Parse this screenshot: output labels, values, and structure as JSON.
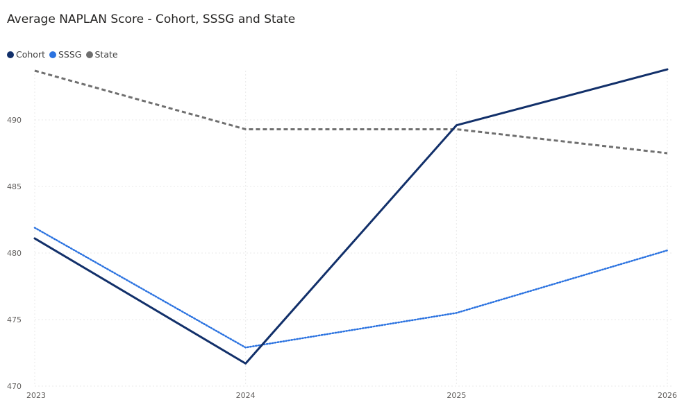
{
  "chart_data": {
    "type": "line",
    "title": "Average NAPLAN Score - Cohort, SSSG and State",
    "x": [
      "2023",
      "2024",
      "2025",
      "2026"
    ],
    "ylim": [
      470,
      493.7
    ],
    "yticks": [
      470,
      475,
      480,
      485,
      490
    ],
    "grid": true,
    "legend_position": "top-left",
    "series": [
      {
        "name": "Cohort",
        "color": "#12306a",
        "style": "solid",
        "values": [
          481.1,
          471.7,
          489.6,
          493.8
        ]
      },
      {
        "name": "SSSG",
        "color": "#2a72e0",
        "style": "dotted",
        "values": [
          481.9,
          472.9,
          475.5,
          480.2
        ]
      },
      {
        "name": "State",
        "color": "#6f6f6f",
        "style": "dashed",
        "values": [
          493.7,
          489.3,
          489.3,
          487.5
        ]
      }
    ]
  }
}
